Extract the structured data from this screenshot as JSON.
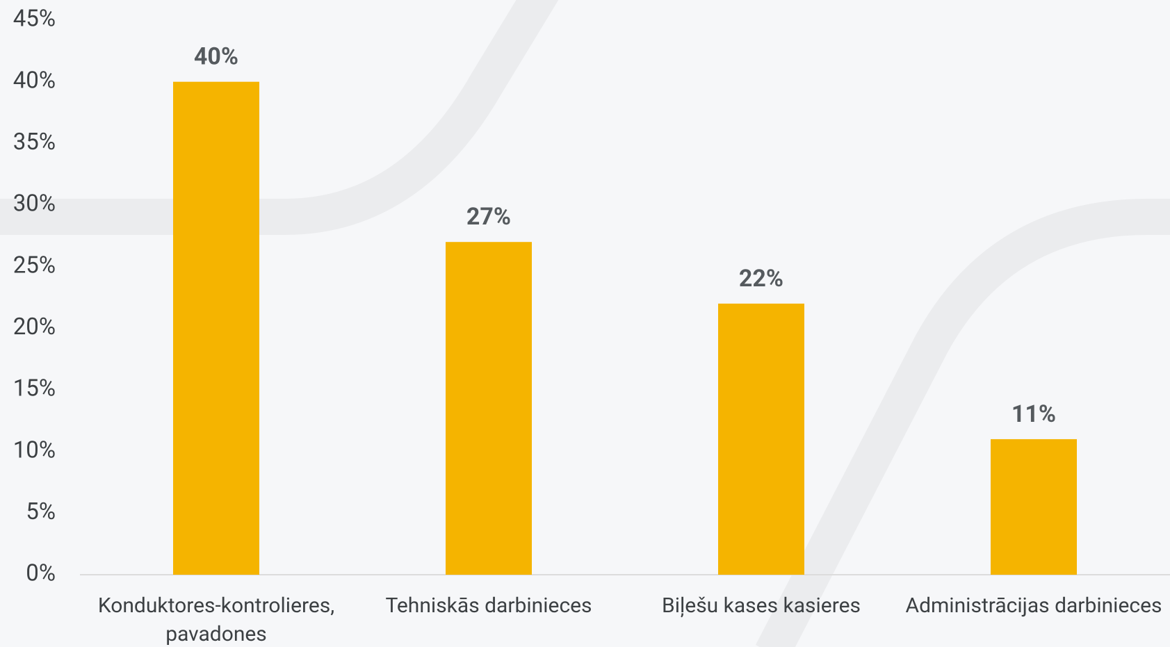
{
  "chart_data": {
    "type": "bar",
    "categories": [
      "Konduktores-kontrolieres, pavadones",
      "Tehniskās darbinieces",
      "Biļešu kases kasieres",
      "Administrācijas darbinieces"
    ],
    "values": [
      40,
      27,
      22,
      11
    ],
    "value_labels": [
      "40%",
      "27%",
      "22%",
      "11%"
    ],
    "color": "#f5b400",
    "ylim": [
      0,
      45
    ],
    "yticks": [
      {
        "value": 0,
        "label": "0%"
      },
      {
        "value": 5,
        "label": "5%"
      },
      {
        "value": 10,
        "label": "10%"
      },
      {
        "value": 15,
        "label": "15%"
      },
      {
        "value": 20,
        "label": "20%"
      },
      {
        "value": 25,
        "label": "25%"
      },
      {
        "value": 30,
        "label": "30%"
      },
      {
        "value": 35,
        "label": "35%"
      },
      {
        "value": 40,
        "label": "40%"
      },
      {
        "value": 45,
        "label": "45%"
      }
    ],
    "grid": false
  }
}
